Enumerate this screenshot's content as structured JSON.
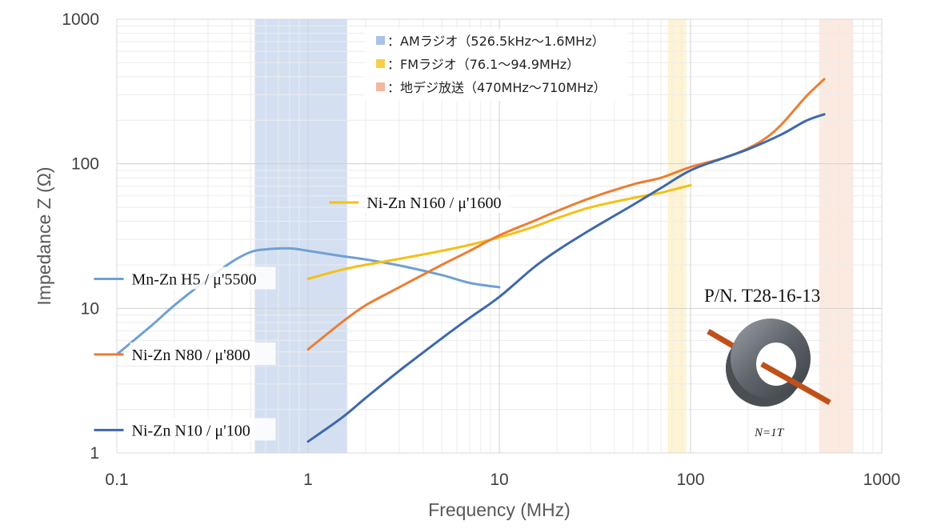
{
  "chart_data": {
    "type": "line",
    "xscale": "log",
    "yscale": "log",
    "xlim": [
      0.1,
      1000
    ],
    "ylim": [
      1,
      1000
    ],
    "xlabel": "Frequency (MHz)",
    "ylabel": "Impedance Z (Ω)",
    "x_ticks": [
      "0.1",
      "1",
      "10",
      "100",
      "1000"
    ],
    "y_ticks": [
      "1",
      "10",
      "100",
      "1000"
    ],
    "bands": [
      {
        "name": "AMラジオ",
        "label": "：AMラジオ（526.5kHz～1.6MHz）",
        "from": 0.5265,
        "to": 1.6,
        "color": "#c5d6ee",
        "legend_color": "#a9c2e6"
      },
      {
        "name": "FMラジオ",
        "label": "：FMラジオ（76.1～94.9MHz）",
        "from": 76.1,
        "to": 94.9,
        "color": "#fdf0c6",
        "legend_color": "#f7d04a"
      },
      {
        "name": "地デジ放送",
        "label": "：地デジ放送（470MHz～710MHz）",
        "from": 470,
        "to": 710,
        "color": "#fbe3d6",
        "legend_color": "#f2b9a0"
      }
    ],
    "series": [
      {
        "name": "Mn-Zn H5 / μ'5500",
        "color": "#6fa0d2",
        "label_at": [
          0.115,
          16
        ],
        "points": [
          [
            0.1,
            4.8
          ],
          [
            0.15,
            7.5
          ],
          [
            0.2,
            10.5
          ],
          [
            0.3,
            16
          ],
          [
            0.4,
            21
          ],
          [
            0.5,
            24.5
          ],
          [
            0.6,
            25.6
          ],
          [
            0.8,
            26
          ],
          [
            1,
            25
          ],
          [
            1.5,
            23
          ],
          [
            2,
            21.8
          ],
          [
            3,
            19.8
          ],
          [
            5,
            17
          ],
          [
            7,
            15
          ],
          [
            10,
            14
          ]
        ]
      },
      {
        "name": "Ni-Zn N160 / μ'1600",
        "color": "#f5c015",
        "label_at": [
          1.95,
          54
        ],
        "points": [
          [
            1,
            16
          ],
          [
            1.5,
            18.5
          ],
          [
            2,
            20
          ],
          [
            3,
            22
          ],
          [
            5,
            25
          ],
          [
            7,
            27.5
          ],
          [
            10,
            31
          ],
          [
            15,
            36.5
          ],
          [
            20,
            42
          ],
          [
            30,
            50
          ],
          [
            50,
            58
          ],
          [
            70,
            63
          ],
          [
            80,
            66
          ],
          [
            100,
            71
          ]
        ]
      },
      {
        "name": "Ni-Zn N80 / μ'800",
        "color": "#ed7d31",
        "label_at": [
          0.115,
          4.8
        ],
        "points": [
          [
            1,
            5.2
          ],
          [
            1.5,
            8
          ],
          [
            2,
            10.5
          ],
          [
            3,
            14
          ],
          [
            5,
            20
          ],
          [
            7,
            25
          ],
          [
            10,
            32
          ],
          [
            15,
            40
          ],
          [
            20,
            47
          ],
          [
            30,
            58
          ],
          [
            50,
            72
          ],
          [
            70,
            80
          ],
          [
            100,
            95
          ],
          [
            150,
            110
          ],
          [
            200,
            128
          ],
          [
            250,
            152
          ],
          [
            300,
            188
          ],
          [
            400,
            290
          ],
          [
            500,
            385
          ]
        ]
      },
      {
        "name": "Ni-Zn N10 / μ'100",
        "color": "#3e68ae",
        "label_at": [
          0.115,
          1.44
        ],
        "points": [
          [
            1,
            1.2
          ],
          [
            1.5,
            1.75
          ],
          [
            2,
            2.4
          ],
          [
            3,
            3.7
          ],
          [
            5,
            6.2
          ],
          [
            7,
            8.6
          ],
          [
            10,
            12
          ],
          [
            15,
            19
          ],
          [
            20,
            25
          ],
          [
            30,
            35
          ],
          [
            50,
            52
          ],
          [
            70,
            68
          ],
          [
            100,
            90
          ],
          [
            150,
            110
          ],
          [
            200,
            126
          ],
          [
            300,
            160
          ],
          [
            400,
            198
          ],
          [
            500,
            220
          ]
        ]
      }
    ],
    "annotations": {
      "part_number": "P/N. T28-16-13",
      "turns": "N=1T"
    }
  }
}
